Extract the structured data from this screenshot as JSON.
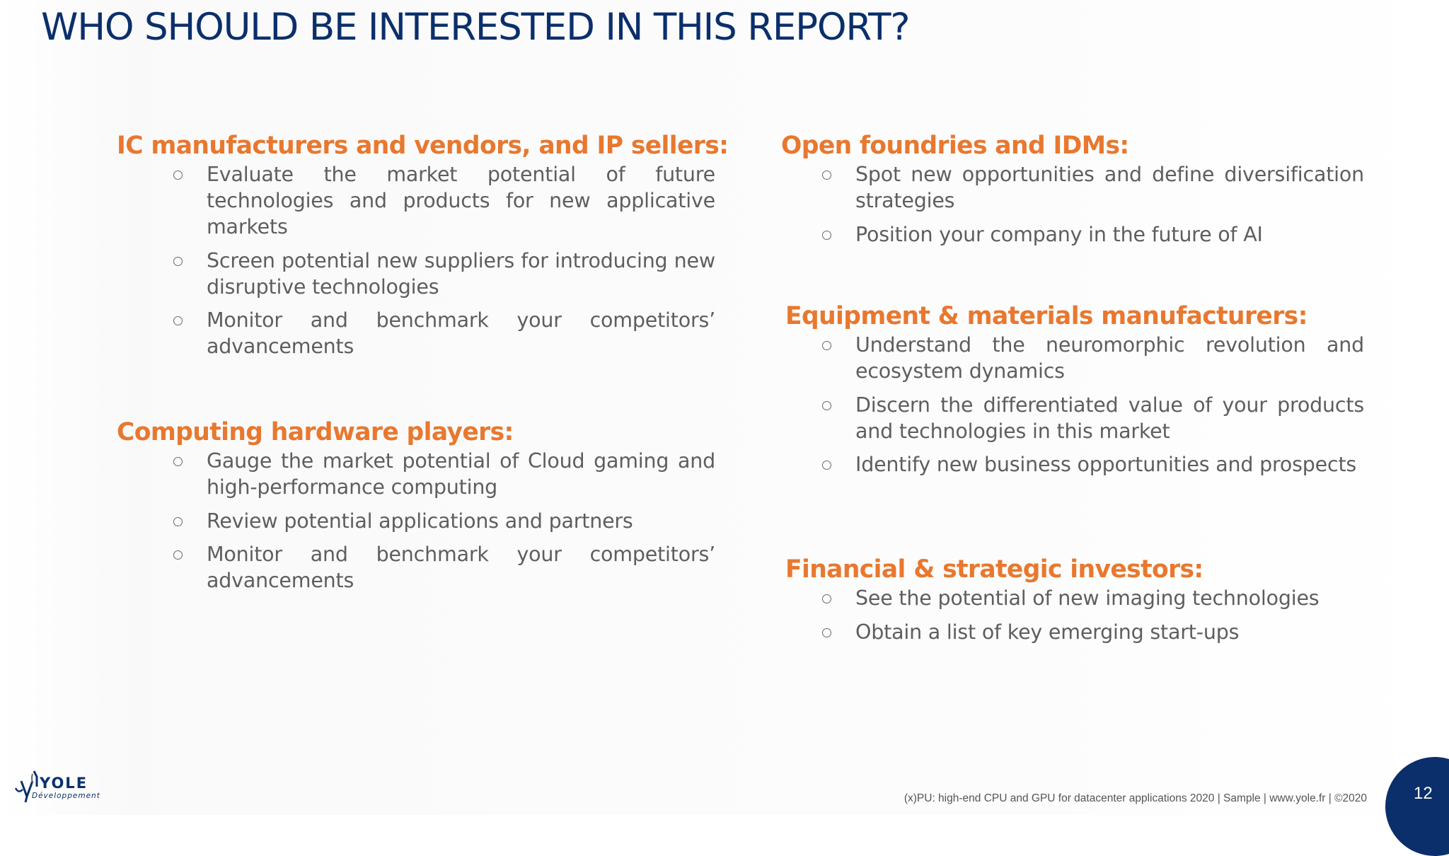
{
  "title": "WHO SHOULD BE INTERESTED IN THIS REPORT?",
  "sections": [
    {
      "heading": "IC manufacturers and vendors, and IP sellers:",
      "bullets": [
        "Evaluate the market potential of future technologies and products for new applicative markets",
        "Screen potential new suppliers for introducing new disruptive technologies",
        "Monitor and benchmark your competitors’ advancements"
      ]
    },
    {
      "heading": "Computing hardware players:",
      "bullets": [
        "Gauge the market potential of Cloud gaming and high-performance computing",
        "Review potential applications and partners",
        "Monitor and benchmark your competitors’ advancements"
      ]
    },
    {
      "heading": "Open foundries and IDMs:",
      "bullets": [
        "Spot new opportunities and define diversification strategies",
        "Position your company in the future of AI"
      ]
    },
    {
      "heading": "Equipment & materials manufacturers:",
      "bullets": [
        "Understand the neuromorphic revolution and ecosystem dynamics",
        "Discern the differentiated value of your products and technologies in this market",
        "Identify new business opportunities and prospects"
      ]
    },
    {
      "heading": "Financial & strategic investors:",
      "bullets": [
        "See the potential of new imaging technologies",
        "Obtain a list of key emerging start-ups"
      ]
    }
  ],
  "logo": {
    "name": "YOLE",
    "subtitle": "Développement"
  },
  "footer": "(x)PU: high-end CPU and GPU for datacenter applications 2020 | Sample | www.yole.fr | ©2020",
  "page_number": "12",
  "colors": {
    "title": "#0b2f6b",
    "heading": "#e8782f",
    "body_text": "#5e5e5e",
    "page_badge": "#0b2f6b"
  }
}
